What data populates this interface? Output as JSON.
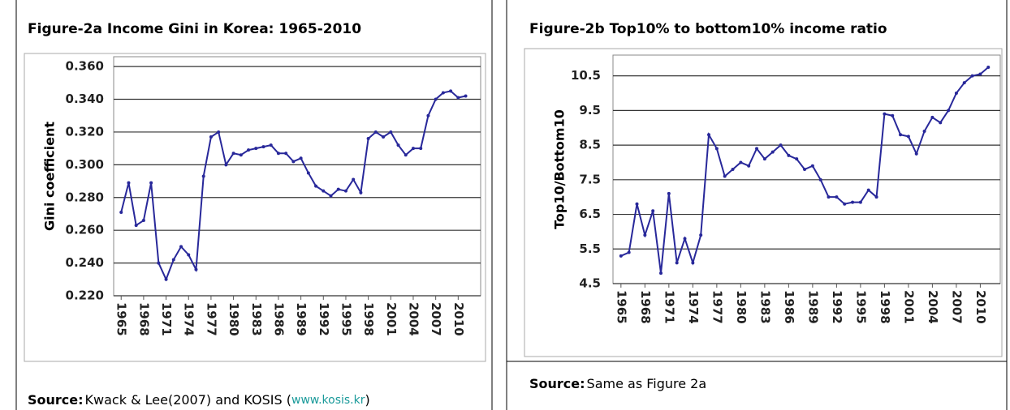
{
  "chart_data": [
    {
      "type": "line",
      "title": "Figure-2a  Income Gini in Korea: 1965-2010",
      "y_label": "Gini coefficient",
      "x": [
        1965,
        1966,
        1967,
        1968,
        1969,
        1970,
        1971,
        1972,
        1973,
        1974,
        1975,
        1976,
        1977,
        1978,
        1979,
        1980,
        1981,
        1982,
        1983,
        1984,
        1985,
        1986,
        1987,
        1988,
        1989,
        1990,
        1991,
        1992,
        1993,
        1994,
        1995,
        1996,
        1997,
        1998,
        1999,
        2000,
        2001,
        2002,
        2003,
        2004,
        2005,
        2006,
        2007,
        2008,
        2009,
        2010,
        2011
      ],
      "series": [
        {
          "name": "Gini",
          "color": "#28289a",
          "values": [
            0.271,
            0.289,
            0.263,
            0.266,
            0.289,
            0.24,
            0.23,
            0.242,
            0.25,
            0.245,
            0.236,
            0.293,
            0.317,
            0.32,
            0.3,
            0.307,
            0.306,
            0.309,
            0.31,
            0.311,
            0.312,
            0.307,
            0.307,
            0.302,
            0.304,
            0.295,
            0.287,
            0.284,
            0.281,
            0.285,
            0.284,
            0.291,
            0.283,
            0.316,
            0.32,
            0.317,
            0.32,
            0.312,
            0.306,
            0.31,
            0.31,
            0.33,
            0.34,
            0.344,
            0.345,
            0.341,
            0.342
          ]
        }
      ],
      "xlim": [
        1964,
        2013
      ],
      "xticks": [
        1965,
        1968,
        1971,
        1974,
        1977,
        1980,
        1983,
        1986,
        1989,
        1992,
        1995,
        1998,
        2001,
        2004,
        2007,
        2010
      ],
      "ylim": [
        0.22,
        0.366
      ],
      "yticks": [
        {
          "value": 0.22,
          "label": "0.220"
        },
        {
          "value": 0.24,
          "label": "0.240"
        },
        {
          "value": 0.26,
          "label": "0.260"
        },
        {
          "value": 0.28,
          "label": "0.280"
        },
        {
          "value": 0.3,
          "label": "0.300"
        },
        {
          "value": 0.32,
          "label": "0.320"
        },
        {
          "value": 0.34,
          "label": "0.340"
        },
        {
          "value": 0.36,
          "label": "0.360"
        }
      ],
      "grid": true,
      "source": {
        "label": "Source:",
        "text": "Kwack & Lee(2007) and KOSIS (",
        "link": "www.kosis.kr",
        "end": ")"
      }
    },
    {
      "type": "line",
      "title": "Figure-2b Top10% to bottom10% income ratio",
      "y_label": "Top10/Bottom10",
      "x": [
        1965,
        1966,
        1967,
        1968,
        1969,
        1970,
        1971,
        1972,
        1973,
        1974,
        1975,
        1976,
        1977,
        1978,
        1979,
        1980,
        1981,
        1982,
        1983,
        1984,
        1985,
        1986,
        1987,
        1988,
        1989,
        1990,
        1991,
        1992,
        1993,
        1994,
        1995,
        1996,
        1997,
        1998,
        1999,
        2000,
        2001,
        2002,
        2003,
        2004,
        2005,
        2006,
        2007,
        2008,
        2009,
        2010,
        2011
      ],
      "series": [
        {
          "name": "Top10/Bottom10",
          "color": "#28289a",
          "values": [
            5.3,
            5.4,
            6.8,
            5.9,
            6.6,
            4.8,
            7.1,
            5.1,
            5.8,
            5.1,
            5.9,
            8.8,
            8.4,
            7.6,
            7.8,
            8.0,
            7.9,
            8.4,
            8.1,
            8.3,
            8.5,
            8.2,
            8.1,
            7.8,
            7.9,
            7.5,
            7.0,
            7.0,
            6.8,
            6.85,
            6.85,
            7.2,
            7.0,
            9.4,
            9.35,
            8.8,
            8.75,
            8.25,
            8.9,
            9.3,
            9.15,
            9.5,
            10.0,
            10.3,
            10.5,
            10.55,
            10.75
          ]
        }
      ],
      "xlim": [
        1964,
        2012.5
      ],
      "xticks": [
        1965,
        1968,
        1971,
        1974,
        1977,
        1980,
        1983,
        1986,
        1989,
        1992,
        1995,
        1998,
        2001,
        2004,
        2007,
        2010
      ],
      "ylim": [
        4.5,
        11.1
      ],
      "yticks": [
        4.5,
        5.5,
        6.5,
        7.5,
        8.5,
        9.5,
        10.5
      ],
      "grid": true,
      "source": {
        "label": "Source:",
        "text": "Same as Figure 2a"
      }
    }
  ]
}
